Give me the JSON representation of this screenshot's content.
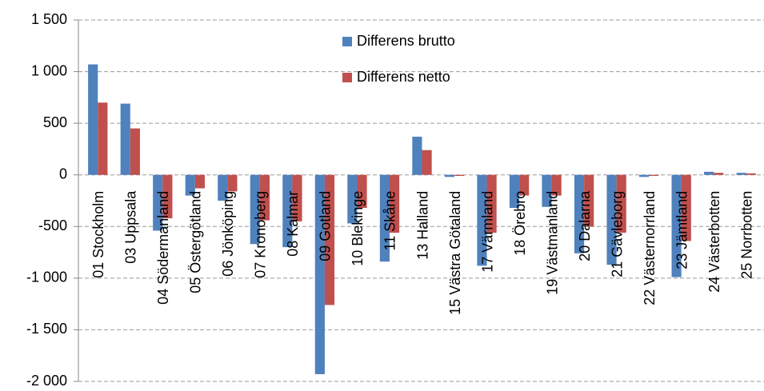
{
  "chart_data": {
    "type": "bar",
    "categories": [
      "01 Stockholm",
      "03 Uppsala",
      "04 Södermanland",
      "05 Östergötland",
      "06 Jönköping",
      "07 Kronoberg",
      "08 Kalmar",
      "09 Gotland",
      "10 Blekinge",
      "11 Skåne",
      "13 Halland",
      "15 Västra Götaland",
      "17 Värmland",
      "18 Örebro",
      "19 Västmanland",
      "20 Dalarna",
      "21 Gävleborg",
      "22 Västernorrland",
      "23 Jämtland",
      "24 Västerbotten",
      "25 Norrbotten"
    ],
    "series": [
      {
        "name": "Differens brutto",
        "color": "#4f81bd",
        "values": [
          1070,
          690,
          -540,
          -200,
          -250,
          -670,
          -700,
          -1930,
          -470,
          -840,
          370,
          -20,
          -880,
          -320,
          -310,
          -760,
          -870,
          -20,
          -990,
          30,
          20
        ]
      },
      {
        "name": "Differens netto",
        "color": "#c0504d",
        "values": [
          700,
          450,
          -420,
          -130,
          -160,
          -440,
          -450,
          -1260,
          -320,
          -560,
          240,
          -10,
          -560,
          -200,
          -200,
          -500,
          -560,
          -10,
          -640,
          20,
          15
        ]
      }
    ],
    "ylim": [
      -2000,
      1500
    ],
    "yticks": [
      {
        "value": -2000,
        "label": "-2 000"
      },
      {
        "value": -1500,
        "label": "-1 500"
      },
      {
        "value": -1000,
        "label": "-1 000"
      },
      -500,
      0,
      500,
      {
        "value": 1000,
        "label": "1 000"
      },
      {
        "value": 1500,
        "label": "1 500"
      }
    ],
    "grid": true,
    "legend": "top"
  }
}
